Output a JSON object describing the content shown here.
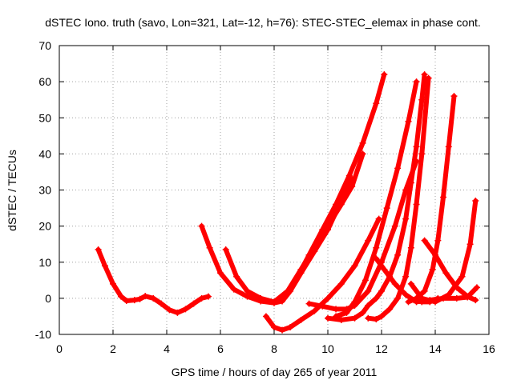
{
  "chart_data": {
    "type": "scatter",
    "title": "dSTEC Iono. truth (savo, Lon=321, Lat=-12, h=76): STEC-STEC_elemax in phase cont.",
    "xlabel": "GPS time / hours of day 265 of year 2011",
    "ylabel": "dSTEC  / TECUs",
    "xlim": [
      0,
      16
    ],
    "ylim": [
      -10,
      70
    ],
    "xticks": [
      "0",
      "2",
      "4",
      "6",
      "8",
      "10",
      "12",
      "14",
      "16"
    ],
    "yticks": [
      "-10",
      "0",
      "10",
      "20",
      "30",
      "40",
      "50",
      "60",
      "70"
    ],
    "grid": true,
    "marker": "+",
    "color": "#ff0000",
    "series": [
      {
        "x": [
          1.45,
          1.7,
          2.0,
          2.3,
          2.5,
          2.8,
          3.0,
          3.2,
          3.5,
          3.8,
          4.1,
          4.4,
          4.7,
          5.0,
          5.3,
          5.55
        ],
        "y": [
          13.5,
          9,
          4,
          0.5,
          -0.7,
          -0.5,
          -0.2,
          0.6,
          0,
          -1.5,
          -3.2,
          -4,
          -3,
          -1.5,
          0,
          0.5
        ]
      },
      {
        "x": [
          5.3,
          5.6,
          6.0,
          6.5,
          7.0,
          7.5,
          8.0,
          8.3,
          8.6,
          9.0,
          9.5,
          10.0,
          10.5,
          10.9
        ],
        "y": [
          20,
          14,
          7,
          2.5,
          0.5,
          -0.8,
          -1.3,
          -0.8,
          2,
          7,
          13,
          19,
          27,
          33
        ]
      },
      {
        "x": [
          6.2,
          6.6,
          7.0,
          7.5,
          8.0,
          8.5,
          9.0,
          9.5,
          10.0,
          10.5,
          10.9,
          11.3
        ],
        "y": [
          13.5,
          6,
          2,
          0,
          -1,
          2,
          8,
          14,
          20,
          26,
          31,
          40
        ]
      },
      {
        "x": [
          8.3,
          8.8,
          9.3,
          9.8,
          10.3,
          10.8,
          11.3,
          11.8,
          12.1
        ],
        "y": [
          0,
          5,
          12,
          19,
          26,
          34,
          43,
          54,
          62
        ]
      },
      {
        "x": [
          7.7,
          8.0,
          8.3,
          8.6,
          9.0,
          9.5,
          10.0,
          10.5,
          11.0,
          11.5,
          11.9
        ],
        "y": [
          -5,
          -8,
          -8.8,
          -8,
          -6,
          -3.5,
          0,
          4,
          9,
          16,
          22
        ]
      },
      {
        "x": [
          9.3,
          9.8,
          10.3,
          10.7,
          11.0,
          11.5,
          12.0,
          12.5,
          12.9,
          13.3
        ],
        "y": [
          -1.5,
          -2.2,
          -3,
          -3,
          -2,
          2,
          10,
          20,
          30,
          38
        ]
      },
      {
        "x": [
          10.3,
          10.7,
          11.0,
          11.4,
          11.8,
          12.2,
          12.6,
          13.0,
          13.3
        ],
        "y": [
          -5,
          -4,
          -1,
          5,
          14,
          25,
          36,
          49,
          60
        ]
      },
      {
        "x": [
          10.0,
          10.5,
          11.0,
          11.3,
          11.5,
          11.8,
          12.0,
          12.3,
          12.6,
          12.9,
          13.1,
          13.3,
          13.5,
          13.6
        ],
        "y": [
          -5.5,
          -6,
          -5.5,
          -4,
          -2,
          0,
          2,
          6,
          12,
          22,
          32,
          42,
          55,
          62
        ]
      },
      {
        "x": [
          11.5,
          11.8,
          12.0,
          12.3,
          12.6,
          12.9,
          13.1,
          13.3,
          13.5,
          13.75
        ],
        "y": [
          -5.5,
          -5.8,
          -5,
          -3,
          0,
          6,
          14,
          26,
          40,
          61
        ]
      },
      {
        "x": [
          11.8,
          12.1,
          12.5,
          12.9,
          13.2,
          13.5,
          13.8,
          14.1
        ],
        "y": [
          11,
          8,
          4,
          1,
          -0.5,
          -1,
          -1,
          0
        ]
      },
      {
        "x": [
          13.0,
          13.3,
          13.6,
          13.9,
          14.1,
          14.3,
          14.5,
          14.7
        ],
        "y": [
          -1,
          0,
          2,
          8,
          16,
          28,
          42,
          56
        ]
      },
      {
        "x": [
          13.6,
          14.0,
          14.4,
          14.8,
          15.2,
          15.5
        ],
        "y": [
          16,
          12,
          7,
          3,
          0.5,
          -0.5
        ]
      },
      {
        "x": [
          13.1,
          13.5,
          14.0,
          14.5,
          15.0,
          15.3,
          15.5
        ],
        "y": [
          4,
          0,
          -1,
          1,
          6,
          15,
          27
        ]
      },
      {
        "x": [
          13.3,
          13.8,
          14.3,
          14.8,
          15.2,
          15.55
        ],
        "y": [
          -1,
          -0.5,
          0,
          0,
          0.3,
          3
        ]
      }
    ]
  }
}
